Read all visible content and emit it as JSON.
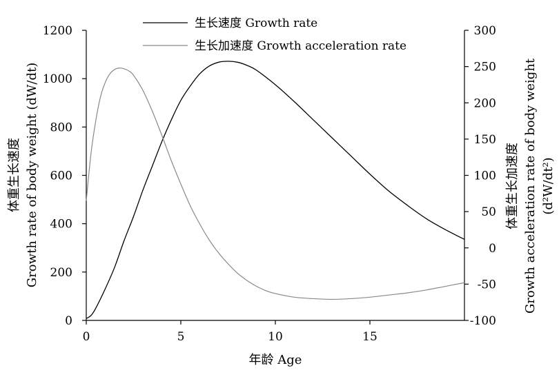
{
  "chart_data": {
    "type": "line",
    "x_axis": {
      "label": "年龄 Age",
      "range": [
        0,
        20
      ],
      "ticks": [
        0,
        5,
        10,
        15
      ]
    },
    "y_axis_left": {
      "label_line1": "体重生长速度",
      "label_line2": "Growth rate of body weight (dW/dt)",
      "range": [
        0,
        1200
      ],
      "ticks": [
        0,
        200,
        400,
        600,
        800,
        1000,
        1200
      ]
    },
    "y_axis_right": {
      "label_line1": "体重生长加速度",
      "label_line2": "Growth acceleration rate of body weight",
      "label_line3": "(d²W/dt²)",
      "range": [
        -100,
        300
      ],
      "ticks": [
        -100,
        -50,
        0,
        50,
        100,
        150,
        200,
        250,
        300
      ]
    },
    "legend": {
      "placement": "top-center"
    },
    "series": [
      {
        "name": "生长速度 Growth rate",
        "axis": "left",
        "color": "#000000",
        "style": "solid",
        "x": [
          0,
          0.25,
          0.5,
          1,
          1.5,
          2,
          2.5,
          3,
          3.5,
          4,
          4.5,
          5,
          5.5,
          6,
          6.5,
          7,
          7.5,
          8,
          8.5,
          9,
          10,
          11,
          12,
          13,
          14,
          15,
          16,
          17,
          18,
          19,
          20
        ],
        "values": [
          8,
          20,
          50,
          130,
          220,
          330,
          430,
          540,
          640,
          740,
          830,
          910,
          970,
          1020,
          1052,
          1068,
          1072,
          1068,
          1055,
          1035,
          975,
          905,
          830,
          755,
          680,
          605,
          535,
          475,
          420,
          375,
          335
        ]
      },
      {
        "name": "生长加速度 Growth acceleration rate",
        "axis": "right",
        "color": "#888888",
        "style": "solid",
        "x": [
          0,
          0.25,
          0.5,
          0.75,
          1,
          1.25,
          1.5,
          1.75,
          2,
          2.25,
          2.5,
          3,
          3.5,
          4,
          4.5,
          5,
          5.5,
          6,
          6.5,
          7,
          7.5,
          8,
          8.5,
          9,
          9.5,
          10,
          11,
          12,
          13,
          14,
          15,
          16,
          17,
          18,
          19,
          20
        ],
        "values": [
          65,
          130,
          175,
          208,
          228,
          240,
          246,
          248,
          247,
          244,
          238,
          217,
          188,
          155,
          120,
          88,
          58,
          33,
          11,
          -7,
          -22,
          -35,
          -45,
          -53,
          -59,
          -63,
          -68,
          -70,
          -71,
          -70,
          -68,
          -65,
          -62,
          -58,
          -53,
          -48
        ]
      }
    ]
  }
}
